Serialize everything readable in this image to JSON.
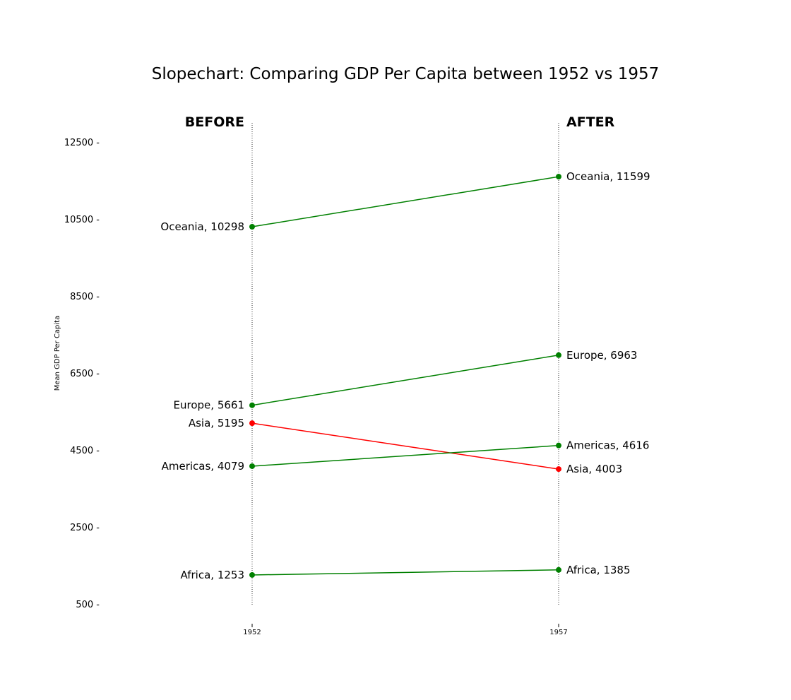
{
  "chart_data": {
    "type": "line",
    "title": "Slopechart: Comparing GDP Per Capita between 1952 vs 1957",
    "ylabel": "Mean GDP Per Capita",
    "xlabel": "",
    "x": [
      "1952",
      "1957"
    ],
    "x_tick_labels": [
      "1952",
      "1957"
    ],
    "headers": {
      "before": "BEFORE",
      "after": "AFTER"
    },
    "ylim": [
      500,
      13000
    ],
    "y_ticks": [
      500,
      2500,
      4500,
      6500,
      8500,
      10500,
      12500
    ],
    "y_tick_labels": [
      "500 -",
      "2500 -",
      "4500 -",
      "6500 -",
      "8500 -",
      "10500 -",
      "12500 -"
    ],
    "grid": false,
    "colors": {
      "increase": "#008000",
      "decrease": "#ff0000",
      "guide": "#333333"
    },
    "series": [
      {
        "name": "Oceania",
        "values": [
          10298,
          11599
        ],
        "label_before": "Oceania, 10298",
        "label_after": "Oceania, 11599"
      },
      {
        "name": "Europe",
        "values": [
          5661,
          6963
        ],
        "label_before": "Europe, 5661",
        "label_after": "Europe, 6963"
      },
      {
        "name": "Asia",
        "values": [
          5195,
          4003
        ],
        "label_before": "Asia, 5195",
        "label_after": "Asia, 4003"
      },
      {
        "name": "Americas",
        "values": [
          4079,
          4616
        ],
        "label_before": "Americas, 4079",
        "label_after": "Americas, 4616"
      },
      {
        "name": "Africa",
        "values": [
          1253,
          1385
        ],
        "label_before": "Africa, 1253",
        "label_after": "Africa, 1385"
      }
    ]
  }
}
